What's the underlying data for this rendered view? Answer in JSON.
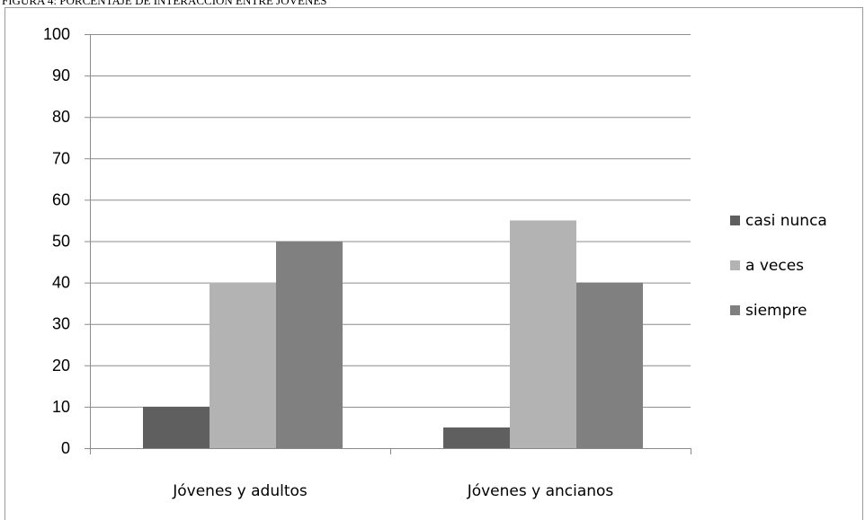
{
  "caption": "FIGURA 4: PORCENTAJE DE INTERACCIÓN ENTRE JÓVENES",
  "chart_data": {
    "type": "bar",
    "categories": [
      "Jóvenes y adultos",
      "Jóvenes y ancianos"
    ],
    "series": [
      {
        "name": "casi nunca",
        "values": [
          10,
          5
        ],
        "color": "#5f5f5f"
      },
      {
        "name": "a veces",
        "values": [
          40,
          55
        ],
        "color": "#b3b3b3"
      },
      {
        "name": "siempre",
        "values": [
          50,
          40
        ],
        "color": "#808080"
      }
    ],
    "ylim": [
      0,
      100
    ],
    "yticks": [
      0,
      10,
      20,
      30,
      40,
      50,
      60,
      70,
      80,
      90,
      100
    ],
    "grid": true,
    "legend_position": "right"
  }
}
